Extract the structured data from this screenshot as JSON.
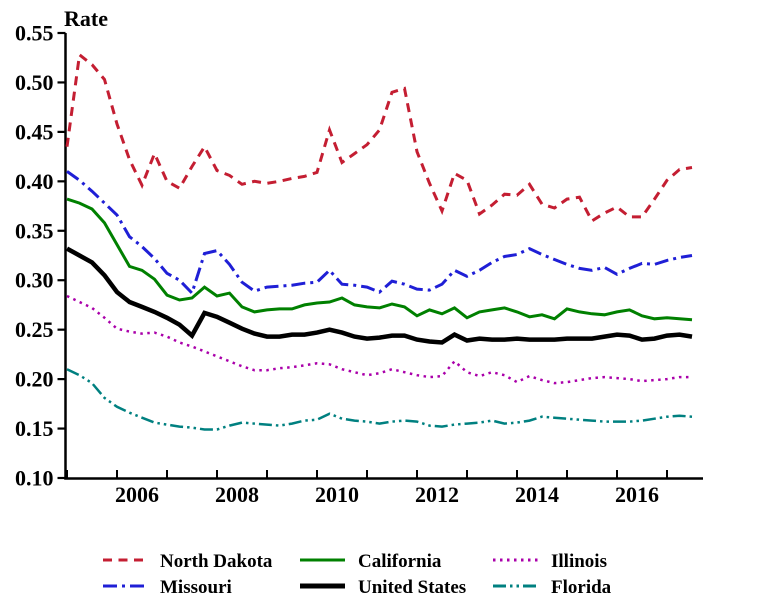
{
  "chart_data": {
    "type": "line",
    "title": "Rate",
    "ylabel": "Rate",
    "xlim": [
      2004.95,
      2017.7
    ],
    "ylim": [
      0.1,
      0.55
    ],
    "grid": false,
    "legend_position": "bottom",
    "yticks": [
      0.1,
      0.15,
      0.2,
      0.25,
      0.3,
      0.35,
      0.4,
      0.45,
      0.5,
      0.55
    ],
    "ytick_labels": [
      "0.10",
      "0.15",
      "0.20",
      "0.25",
      "0.30",
      "0.35",
      "0.40",
      "0.45",
      "0.50",
      "0.55"
    ],
    "xtick_years": [
      2005,
      2006,
      2007,
      2008,
      2009,
      2010,
      2011,
      2012,
      2013,
      2014,
      2015,
      2016,
      2017
    ],
    "xtick_labels": [
      {
        "year": 2006,
        "text": "2006"
      },
      {
        "year": 2008,
        "text": "2008"
      },
      {
        "year": 2010,
        "text": "2010"
      },
      {
        "year": 2012,
        "text": "2012"
      },
      {
        "year": 2014,
        "text": "2014"
      },
      {
        "year": 2016,
        "text": "2016"
      }
    ],
    "x_start": 2005.0,
    "x_step": 0.25,
    "series": [
      {
        "name": "North Dakota",
        "color": "#c41e32",
        "style": "dashed",
        "width": 3,
        "values": [
          0.435,
          0.528,
          0.518,
          0.503,
          0.458,
          0.422,
          0.396,
          0.428,
          0.4,
          0.393,
          0.415,
          0.435,
          0.411,
          0.406,
          0.397,
          0.4,
          0.398,
          0.4,
          0.403,
          0.405,
          0.409,
          0.452,
          0.419,
          0.428,
          0.437,
          0.452,
          0.49,
          0.494,
          0.43,
          0.398,
          0.37,
          0.408,
          0.401,
          0.367,
          0.376,
          0.387,
          0.386,
          0.397,
          0.377,
          0.373,
          0.382,
          0.384,
          0.36,
          0.368,
          0.374,
          0.364,
          0.364,
          0.382,
          0.401,
          0.412,
          0.414
        ]
      },
      {
        "name": "Missouri",
        "color": "#1f1fd6",
        "style": "dash-dot",
        "width": 3,
        "values": [
          0.41,
          0.401,
          0.39,
          0.378,
          0.366,
          0.344,
          0.334,
          0.322,
          0.307,
          0.3,
          0.287,
          0.327,
          0.33,
          0.316,
          0.298,
          0.289,
          0.293,
          0.294,
          0.295,
          0.297,
          0.298,
          0.31,
          0.296,
          0.295,
          0.293,
          0.288,
          0.299,
          0.296,
          0.291,
          0.29,
          0.296,
          0.31,
          0.304,
          0.31,
          0.318,
          0.324,
          0.326,
          0.332,
          0.326,
          0.321,
          0.316,
          0.312,
          0.31,
          0.313,
          0.306,
          0.312,
          0.317,
          0.316,
          0.32,
          0.323,
          0.325
        ]
      },
      {
        "name": "California",
        "color": "#008000",
        "style": "solid",
        "width": 3,
        "values": [
          0.382,
          0.378,
          0.372,
          0.358,
          0.336,
          0.314,
          0.31,
          0.301,
          0.285,
          0.28,
          0.282,
          0.293,
          0.284,
          0.287,
          0.273,
          0.268,
          0.27,
          0.271,
          0.271,
          0.275,
          0.277,
          0.278,
          0.282,
          0.275,
          0.273,
          0.272,
          0.276,
          0.273,
          0.264,
          0.27,
          0.266,
          0.272,
          0.262,
          0.268,
          0.27,
          0.272,
          0.268,
          0.263,
          0.265,
          0.261,
          0.271,
          0.268,
          0.266,
          0.265,
          0.268,
          0.27,
          0.264,
          0.261,
          0.262,
          0.261,
          0.26
        ]
      },
      {
        "name": "United States",
        "color": "#000000",
        "style": "solid",
        "width": 4.5,
        "values": [
          0.332,
          0.325,
          0.318,
          0.305,
          0.288,
          0.278,
          0.273,
          0.268,
          0.262,
          0.255,
          0.244,
          0.267,
          0.263,
          0.257,
          0.251,
          0.246,
          0.243,
          0.243,
          0.245,
          0.245,
          0.247,
          0.25,
          0.247,
          0.243,
          0.241,
          0.242,
          0.244,
          0.244,
          0.24,
          0.238,
          0.237,
          0.245,
          0.239,
          0.241,
          0.24,
          0.24,
          0.241,
          0.24,
          0.24,
          0.24,
          0.241,
          0.241,
          0.241,
          0.243,
          0.245,
          0.244,
          0.24,
          0.241,
          0.244,
          0.245,
          0.243
        ]
      },
      {
        "name": "Illinois",
        "color": "#aa00aa",
        "style": "dotted",
        "width": 2.5,
        "values": [
          0.284,
          0.278,
          0.272,
          0.262,
          0.251,
          0.248,
          0.246,
          0.247,
          0.243,
          0.237,
          0.233,
          0.228,
          0.223,
          0.218,
          0.213,
          0.209,
          0.209,
          0.211,
          0.212,
          0.214,
          0.216,
          0.215,
          0.21,
          0.207,
          0.204,
          0.206,
          0.21,
          0.207,
          0.204,
          0.202,
          0.203,
          0.218,
          0.207,
          0.203,
          0.207,
          0.204,
          0.197,
          0.203,
          0.199,
          0.196,
          0.197,
          0.199,
          0.201,
          0.202,
          0.201,
          0.2,
          0.198,
          0.199,
          0.2,
          0.202,
          0.202
        ]
      },
      {
        "name": "Florida",
        "color": "#008080",
        "style": "dash-dot-dot",
        "width": 2.5,
        "values": [
          0.21,
          0.204,
          0.196,
          0.181,
          0.172,
          0.166,
          0.161,
          0.156,
          0.154,
          0.152,
          0.151,
          0.149,
          0.149,
          0.153,
          0.156,
          0.155,
          0.154,
          0.153,
          0.155,
          0.158,
          0.159,
          0.165,
          0.16,
          0.158,
          0.157,
          0.155,
          0.157,
          0.158,
          0.157,
          0.153,
          0.152,
          0.154,
          0.155,
          0.156,
          0.158,
          0.155,
          0.156,
          0.158,
          0.162,
          0.161,
          0.16,
          0.159,
          0.158,
          0.157,
          0.157,
          0.157,
          0.158,
          0.16,
          0.162,
          0.163,
          0.162
        ]
      }
    ],
    "legend": {
      "items": [
        {
          "series": 0,
          "row": 0,
          "col": 0
        },
        {
          "series": 2,
          "row": 0,
          "col": 1
        },
        {
          "series": 4,
          "row": 0,
          "col": 2
        },
        {
          "series": 1,
          "row": 1,
          "col": 0
        },
        {
          "series": 3,
          "row": 1,
          "col": 1
        },
        {
          "series": 5,
          "row": 1,
          "col": 2
        }
      ]
    }
  }
}
